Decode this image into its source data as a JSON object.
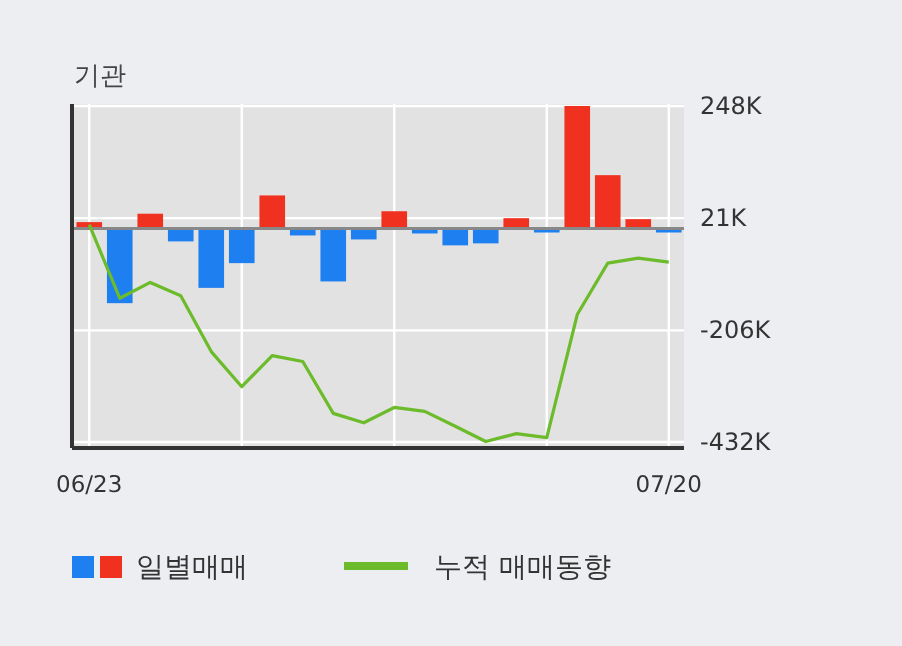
{
  "chart_data": {
    "type": "bar",
    "title": "기관",
    "categories": [
      "06/23",
      null,
      null,
      null,
      null,
      null,
      null,
      null,
      null,
      null,
      null,
      null,
      null,
      null,
      null,
      null,
      null,
      null,
      null,
      "07/20"
    ],
    "series": [
      {
        "name": "일별매매",
        "colors": [
          "#f0311f",
          "#1e7ff0",
          "#f0311f",
          "#1e7ff0",
          "#1e7ff0",
          "#1e7ff0",
          "#f0311f",
          "#1e7ff0",
          "#1e7ff0",
          "#1e7ff0",
          "#f0311f",
          "#1e7ff0",
          "#1e7ff0",
          "#1e7ff0",
          "#f0311f",
          "#1e7ff0",
          "#f0311f",
          "#f0311f",
          "#f0311f",
          "#1e7ff0"
        ],
        "values": [
          13,
          -151,
          30,
          -26,
          -120,
          -70,
          67,
          -14,
          -107,
          -22,
          35,
          -10,
          -34,
          -30,
          21,
          -8,
          248,
          108,
          19,
          -8
        ]
      },
      {
        "name": "누적 매매동향",
        "type": "line",
        "color": "#6cbb2a",
        "values": [
          8,
          -141,
          -109,
          -136,
          -249,
          -320,
          -257,
          -269,
          -374,
          -393,
          -362,
          -370,
          -400,
          -431,
          -415,
          -423,
          -174,
          -70,
          -60,
          -68
        ]
      }
    ],
    "ylim": [
      -440,
      252
    ],
    "yticks": [
      {
        "value": 248,
        "label": "248K"
      },
      {
        "value": 21,
        "label": "21K"
      },
      {
        "value": -206,
        "label": "-206K"
      },
      {
        "value": -432,
        "label": "-432K"
      }
    ],
    "grid": true,
    "legend": "bottom"
  }
}
